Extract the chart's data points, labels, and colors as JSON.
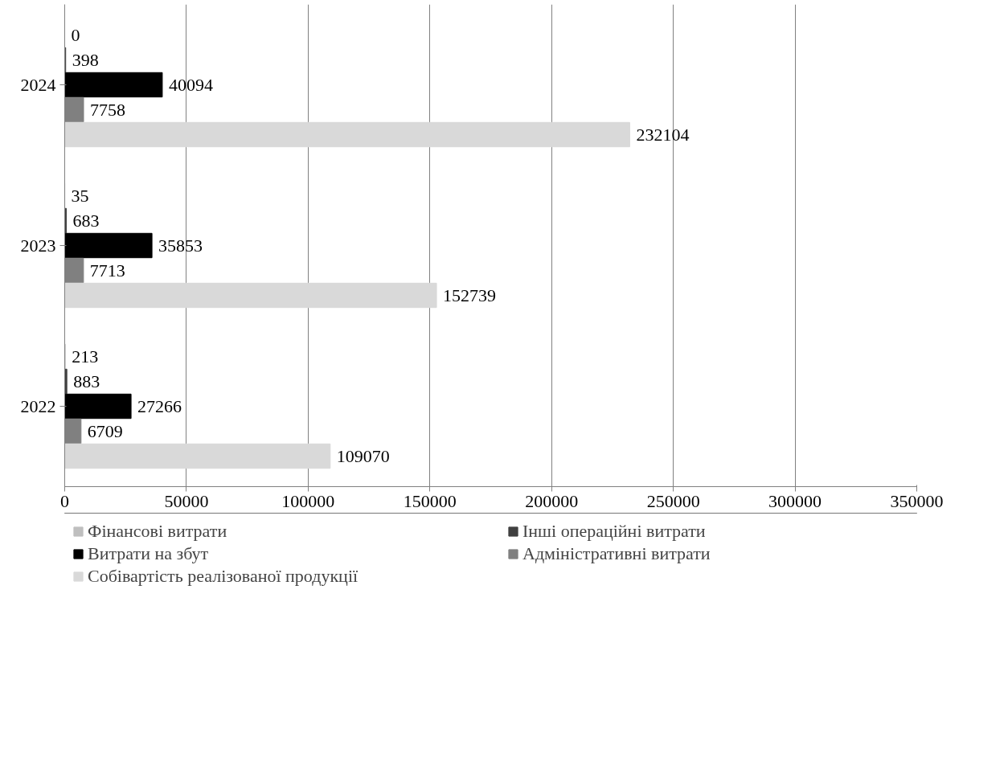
{
  "chart_data": {
    "type": "bar",
    "orientation": "horizontal",
    "categories": [
      "2024",
      "2023",
      "2022"
    ],
    "series": [
      {
        "name": "Фінансові витрати",
        "color": "#bfbfbf",
        "values": [
          0,
          35,
          213
        ]
      },
      {
        "name": "Інші операційні витрати",
        "color": "#404040",
        "values": [
          398,
          683,
          883
        ]
      },
      {
        "name": "Витрати на збут",
        "color": "#000000",
        "values": [
          40094,
          35853,
          27266
        ]
      },
      {
        "name": "Адміністративні витрати",
        "color": "#808080",
        "values": [
          7758,
          7713,
          6709
        ]
      },
      {
        "name": "Собівартість реалізованої продукції",
        "color": "#d9d9d9",
        "values": [
          232104,
          152739,
          109070
        ]
      }
    ],
    "xlim": [
      0,
      350000
    ],
    "xticks": [
      0,
      50000,
      100000,
      150000,
      200000,
      250000,
      300000,
      350000
    ],
    "grid": "x",
    "data_labels": true,
    "legend": "bottom"
  }
}
